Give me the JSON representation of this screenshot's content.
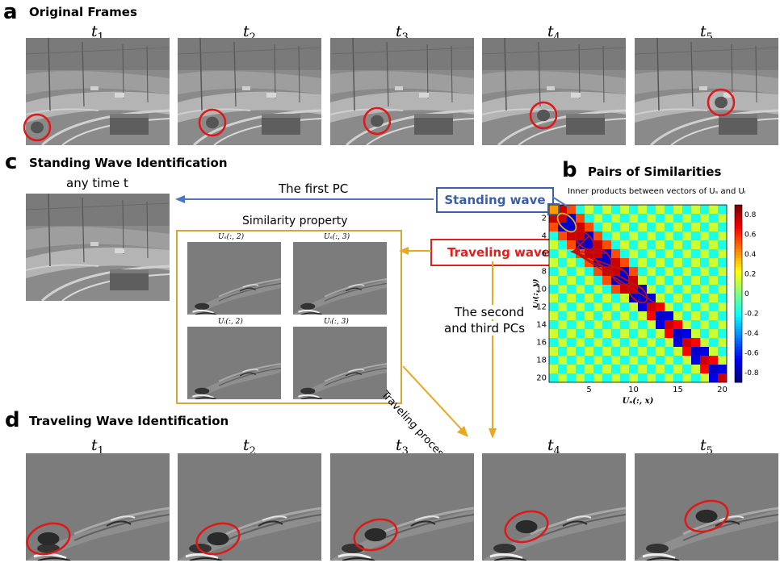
{
  "panel_a": {
    "letter": "a",
    "title": "Original Frames"
  },
  "panel_b": {
    "letter": "b",
    "title": "Pairs of Similarities",
    "subtitle": "Inner products between vectors of Uₛ and Uᵢ"
  },
  "panel_c": {
    "letter": "c",
    "title": "Standing Wave Identification",
    "any_time": "any time t",
    "first_pc": "The first PC"
  },
  "panel_d": {
    "letter": "d",
    "title": "Traveling Wave Identification"
  },
  "time_labels": [
    "t",
    "t",
    "t",
    "t",
    "t"
  ],
  "time_subs": [
    "1",
    "2",
    "3",
    "4",
    "5"
  ],
  "standing_wave": "Standing wave",
  "traveling_waves": "Traveling waves",
  "similarity_property": "Similarity property",
  "thumb_labels": [
    "Uₛ(:, 2)",
    "Uₛ(:, 3)",
    "Uᵢ(:, 2)",
    "Uᵢ(:, 3)"
  ],
  "second_third_pcs": [
    "The second",
    "and third PCs"
  ],
  "traveling_process": "Traveling process",
  "colors": {
    "blue_box": "#3a5fa6",
    "red_box": "#e0201f",
    "arrow_orange": "#e8a820",
    "arrow_blue": "#4a78c0",
    "circle_red": "#e01818"
  },
  "chart_data": {
    "type": "heatmap",
    "title": "",
    "xlabel": "Uₛ(:, x)",
    "ylabel": "Uᵢ(:, y)",
    "x_ticks": [
      "5",
      "10",
      "15",
      "20"
    ],
    "y_ticks": [
      "2",
      "4",
      "6",
      "8",
      "10",
      "12",
      "14",
      "16",
      "18",
      "20"
    ],
    "colorbar_ticks": [
      "0.8",
      "0.6",
      "0.4",
      "0.2",
      "0",
      "-0.2",
      "-0.4",
      "-0.6",
      "-0.8"
    ],
    "xlim": [
      1,
      20
    ],
    "ylim": [
      1,
      20
    ],
    "clim": [
      -0.9,
      0.9
    ],
    "size": 20
  }
}
